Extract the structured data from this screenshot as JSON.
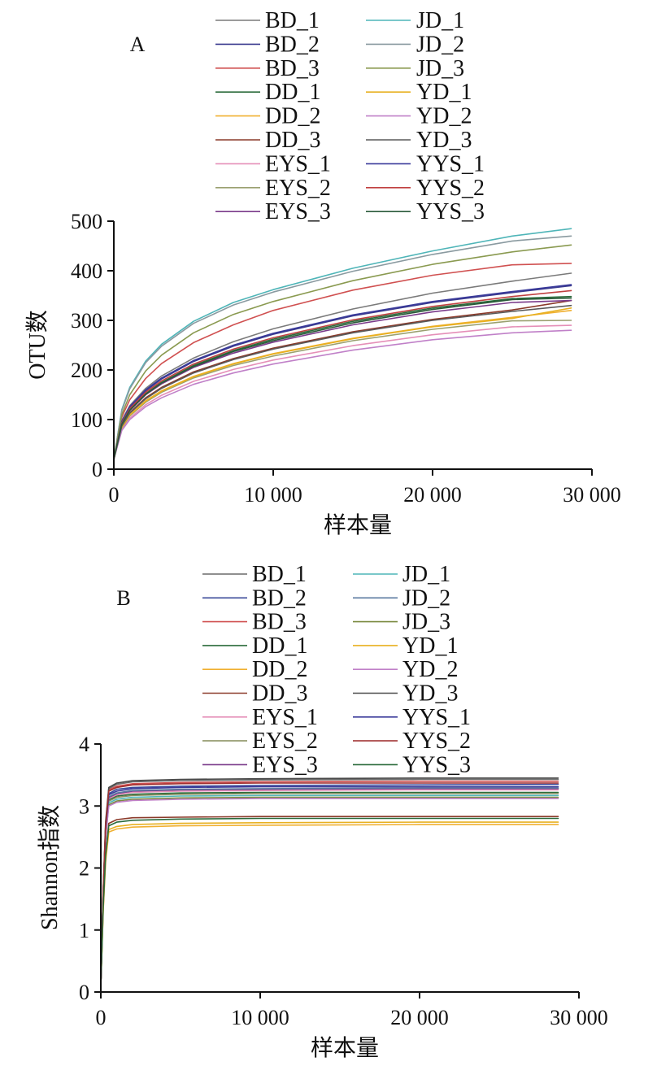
{
  "chart_data": [
    {
      "type": "line",
      "panel_label": "A",
      "title": "",
      "xlabel": "样本量",
      "ylabel": "OTU数",
      "xlim": [
        0,
        30000
      ],
      "ylim": [
        0,
        500
      ],
      "x_ticks": [
        0,
        10000,
        20000,
        30000
      ],
      "x_tick_labels": [
        "0",
        "10 000",
        "20 000",
        "30 000"
      ],
      "y_ticks": [
        0,
        100,
        200,
        300,
        400,
        500
      ],
      "y_tick_labels": [
        "0",
        "100",
        "200",
        "300",
        "400",
        "500"
      ],
      "grid": false,
      "legend_position": "top",
      "x": [
        0,
        500,
        1000,
        2000,
        3000,
        5000,
        7500,
        10000,
        15000,
        20000,
        25000,
        28700
      ],
      "series": [
        {
          "name": "BD_1",
          "color": "#7a7a7a",
          "values": [
            20,
            98,
            128,
            163,
            188,
            224,
            257,
            283,
            323,
            355,
            379,
            395
          ]
        },
        {
          "name": "BD_2",
          "color": "#3b3b8f",
          "values": [
            20,
            95,
            125,
            158,
            182,
            217,
            248,
            272,
            309,
            336,
            356,
            370
          ]
        },
        {
          "name": "BD_3",
          "color": "#d05050",
          "values": [
            20,
            105,
            140,
            183,
            213,
            255,
            291,
            320,
            361,
            391,
            412,
            415
          ]
        },
        {
          "name": "DD_1",
          "color": "#2b6b3b",
          "values": [
            20,
            92,
            120,
            152,
            175,
            209,
            239,
            262,
            298,
            325,
            344,
            348
          ]
        },
        {
          "name": "DD_2",
          "color": "#f0b030",
          "values": [
            20,
            85,
            110,
            138,
            158,
            187,
            213,
            233,
            264,
            288,
            306,
            320
          ]
        },
        {
          "name": "DD_3",
          "color": "#8b3a2a",
          "values": [
            20,
            88,
            114,
            144,
            165,
            196,
            223,
            244,
            277,
            302,
            321,
            340
          ]
        },
        {
          "name": "EYS_1",
          "color": "#e58fb8",
          "values": [
            20,
            80,
            103,
            130,
            149,
            177,
            201,
            220,
            249,
            271,
            287,
            290
          ]
        },
        {
          "name": "EYS_2",
          "color": "#9aa070",
          "values": [
            20,
            83,
            107,
            135,
            155,
            184,
            209,
            228,
            259,
            282,
            299,
            300
          ]
        },
        {
          "name": "EYS_3",
          "color": "#7a3a8a",
          "values": [
            20,
            90,
            118,
            150,
            172,
            205,
            234,
            256,
            291,
            317,
            336,
            340
          ]
        },
        {
          "name": "JD_1",
          "color": "#4fb5b8",
          "values": [
            20,
            120,
            165,
            218,
            252,
            298,
            336,
            362,
            405,
            440,
            470,
            485
          ]
        },
        {
          "name": "JD_2",
          "color": "#8a9aa0",
          "values": [
            20,
            118,
            162,
            215,
            248,
            294,
            331,
            357,
            399,
            433,
            460,
            470
          ]
        },
        {
          "name": "JD_3",
          "color": "#8a9a50",
          "values": [
            20,
            110,
            150,
            198,
            230,
            275,
            312,
            338,
            380,
            413,
            438,
            452
          ]
        },
        {
          "name": "YD_1",
          "color": "#e8b020",
          "values": [
            20,
            84,
            109,
            137,
            157,
            186,
            212,
            232,
            263,
            287,
            304,
            325
          ]
        },
        {
          "name": "YD_2",
          "color": "#c080c8",
          "values": [
            20,
            78,
            100,
            126,
            144,
            171,
            194,
            212,
            240,
            261,
            275,
            280
          ]
        },
        {
          "name": "YD_3",
          "color": "#5a5a5a",
          "values": [
            20,
            87,
            113,
            142,
            163,
            194,
            221,
            242,
            275,
            300,
            318,
            330
          ]
        },
        {
          "name": "YYS_1",
          "color": "#3a3a9a",
          "values": [
            20,
            96,
            126,
            160,
            184,
            219,
            250,
            274,
            311,
            338,
            358,
            372
          ]
        },
        {
          "name": "YYS_2",
          "color": "#c04040",
          "values": [
            20,
            93,
            122,
            155,
            178,
            212,
            242,
            265,
            301,
            328,
            348,
            360
          ]
        },
        {
          "name": "YYS_3",
          "color": "#2a5a3a",
          "values": [
            20,
            91,
            119,
            151,
            174,
            207,
            237,
            259,
            295,
            322,
            342,
            345
          ]
        }
      ]
    },
    {
      "type": "line",
      "panel_label": "B",
      "title": "",
      "xlabel": "样本量",
      "ylabel": "Shannon指数",
      "xlim": [
        0,
        30000
      ],
      "ylim": [
        0,
        4
      ],
      "x_ticks": [
        0,
        10000,
        20000,
        30000
      ],
      "x_tick_labels": [
        "0",
        "10 000",
        "20 000",
        "30 000"
      ],
      "y_ticks": [
        0,
        1,
        2,
        3,
        4
      ],
      "y_tick_labels": [
        "0",
        "1",
        "2",
        "3",
        "4"
      ],
      "grid": false,
      "legend_position": "top",
      "x": [
        0,
        150,
        300,
        500,
        1000,
        2000,
        5000,
        10000,
        20000,
        28700
      ],
      "series": [
        {
          "name": "BD_1",
          "color": "#6a6a6a",
          "values": [
            0.1,
            1.6,
            2.7,
            3.28,
            3.35,
            3.39,
            3.41,
            3.42,
            3.43,
            3.43
          ]
        },
        {
          "name": "BD_2",
          "color": "#3b4a9a",
          "values": [
            0.1,
            1.6,
            2.65,
            3.2,
            3.27,
            3.3,
            3.32,
            3.33,
            3.34,
            3.35
          ]
        },
        {
          "name": "BD_3",
          "color": "#d05050",
          "values": [
            0.1,
            1.6,
            2.7,
            3.26,
            3.32,
            3.36,
            3.38,
            3.39,
            3.4,
            3.4
          ]
        },
        {
          "name": "DD_1",
          "color": "#2b6b3b",
          "values": [
            0.1,
            1.5,
            2.5,
            3.1,
            3.16,
            3.19,
            3.21,
            3.22,
            3.22,
            3.22
          ]
        },
        {
          "name": "DD_2",
          "color": "#f0b030",
          "values": [
            0.1,
            1.3,
            2.1,
            2.58,
            2.63,
            2.66,
            2.68,
            2.69,
            2.7,
            2.7
          ]
        },
        {
          "name": "DD_3",
          "color": "#8b3a2a",
          "values": [
            0.1,
            1.4,
            2.2,
            2.72,
            2.78,
            2.81,
            2.82,
            2.83,
            2.83,
            2.83
          ]
        },
        {
          "name": "EYS_1",
          "color": "#e58fb8",
          "values": [
            0.1,
            1.55,
            2.6,
            3.12,
            3.18,
            3.22,
            3.24,
            3.25,
            3.26,
            3.26
          ]
        },
        {
          "name": "EYS_2",
          "color": "#8a9060",
          "values": [
            0.1,
            1.5,
            2.55,
            3.08,
            3.14,
            3.17,
            3.19,
            3.2,
            3.2,
            3.2
          ]
        },
        {
          "name": "EYS_3",
          "color": "#7a3a8a",
          "values": [
            0.1,
            1.55,
            2.6,
            3.14,
            3.2,
            3.24,
            3.26,
            3.27,
            3.28,
            3.28
          ]
        },
        {
          "name": "JD_1",
          "color": "#4fb5b8",
          "values": [
            0.1,
            1.5,
            2.55,
            3.05,
            3.11,
            3.14,
            3.16,
            3.17,
            3.17,
            3.17
          ]
        },
        {
          "name": "JD_2",
          "color": "#5a7aa0",
          "values": [
            0.1,
            1.55,
            2.6,
            3.15,
            3.21,
            3.25,
            3.27,
            3.28,
            3.29,
            3.29
          ]
        },
        {
          "name": "JD_3",
          "color": "#7a8a40",
          "values": [
            0.1,
            1.5,
            2.5,
            3.02,
            3.08,
            3.11,
            3.13,
            3.14,
            3.14,
            3.14
          ]
        },
        {
          "name": "YD_1",
          "color": "#e8b020",
          "values": [
            0.1,
            1.3,
            2.15,
            2.62,
            2.67,
            2.7,
            2.72,
            2.73,
            2.74,
            2.74
          ]
        },
        {
          "name": "YD_2",
          "color": "#c080c8",
          "values": [
            0.1,
            1.5,
            2.5,
            3.0,
            3.06,
            3.09,
            3.11,
            3.12,
            3.12,
            3.12
          ]
        },
        {
          "name": "YD_3",
          "color": "#4a4a4a",
          "values": [
            0.1,
            1.65,
            2.75,
            3.3,
            3.37,
            3.41,
            3.43,
            3.44,
            3.45,
            3.45
          ]
        },
        {
          "name": "YYS_1",
          "color": "#3a3a9a",
          "values": [
            0.1,
            1.55,
            2.62,
            3.18,
            3.24,
            3.28,
            3.3,
            3.31,
            3.31,
            3.31
          ]
        },
        {
          "name": "YYS_2",
          "color": "#a03030",
          "values": [
            0.1,
            1.6,
            2.68,
            3.24,
            3.3,
            3.34,
            3.36,
            3.37,
            3.37,
            3.37
          ]
        },
        {
          "name": "YYS_3",
          "color": "#2a6a3a",
          "values": [
            0.1,
            1.35,
            2.2,
            2.68,
            2.74,
            2.77,
            2.79,
            2.8,
            2.8,
            2.8
          ]
        }
      ]
    }
  ]
}
